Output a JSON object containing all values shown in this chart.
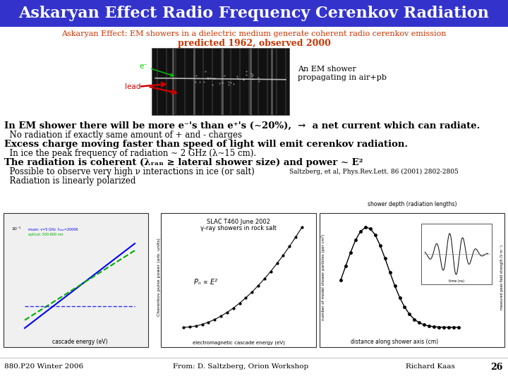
{
  "title": "Askaryan Effect Radio Frequency Cerenkov Radiation",
  "title_color": "#FFFFFF",
  "title_bg_color": "#3333CC",
  "subtitle1": "Askaryan Effect: EM showers in a dielectric medium generate coherent radio cerenkov emission",
  "subtitle2": "predicted 1962, observed 2000",
  "subtitle_color": "#CC3300",
  "body_lines": [
    {
      "text": "In EM shower there will be more e⁻'s than e⁺'s (~20%),  →  a net current which can radiate.",
      "indent": 0,
      "bold": true,
      "size": 9.5
    },
    {
      "text": "  No radiation if exactly same amount of + and - charges",
      "indent": 1,
      "bold": false,
      "size": 8.5
    },
    {
      "text": "Excess charge moving faster than speed of light will emit cerenkov radiation.",
      "indent": 0,
      "bold": true,
      "size": 9.5
    },
    {
      "text": "  In ice the peak frequency of radiation ~ 2 GHz (λ~15 cm).",
      "indent": 1,
      "bold": false,
      "size": 8.5
    },
    {
      "text": "The radiation is coherent (λᵣₐₙ ≥ lateral shower size) and power ~ E²",
      "indent": 0,
      "bold": true,
      "size": 9.5
    },
    {
      "text": "  Possible to observe very high ν interactions in ice (or salt)",
      "indent": 1,
      "bold": false,
      "size": 8.5
    },
    {
      "text": "  Radiation is linearly polarized",
      "indent": 1,
      "bold": false,
      "size": 8.5
    }
  ],
  "annotation_shower": "An EM shower\npropagating in air+pb",
  "annotation_ref": "Saltzberg, et al, Phys.Rev.Lett. 86 (2001) 2802-2805",
  "footer_left": "880.P20 Winter 2006",
  "footer_center": "From: D. Saltzberg, Orion Workshop",
  "footer_right": "Richard Kaas",
  "footer_number": "26",
  "bg_color": "#FFFFFF"
}
